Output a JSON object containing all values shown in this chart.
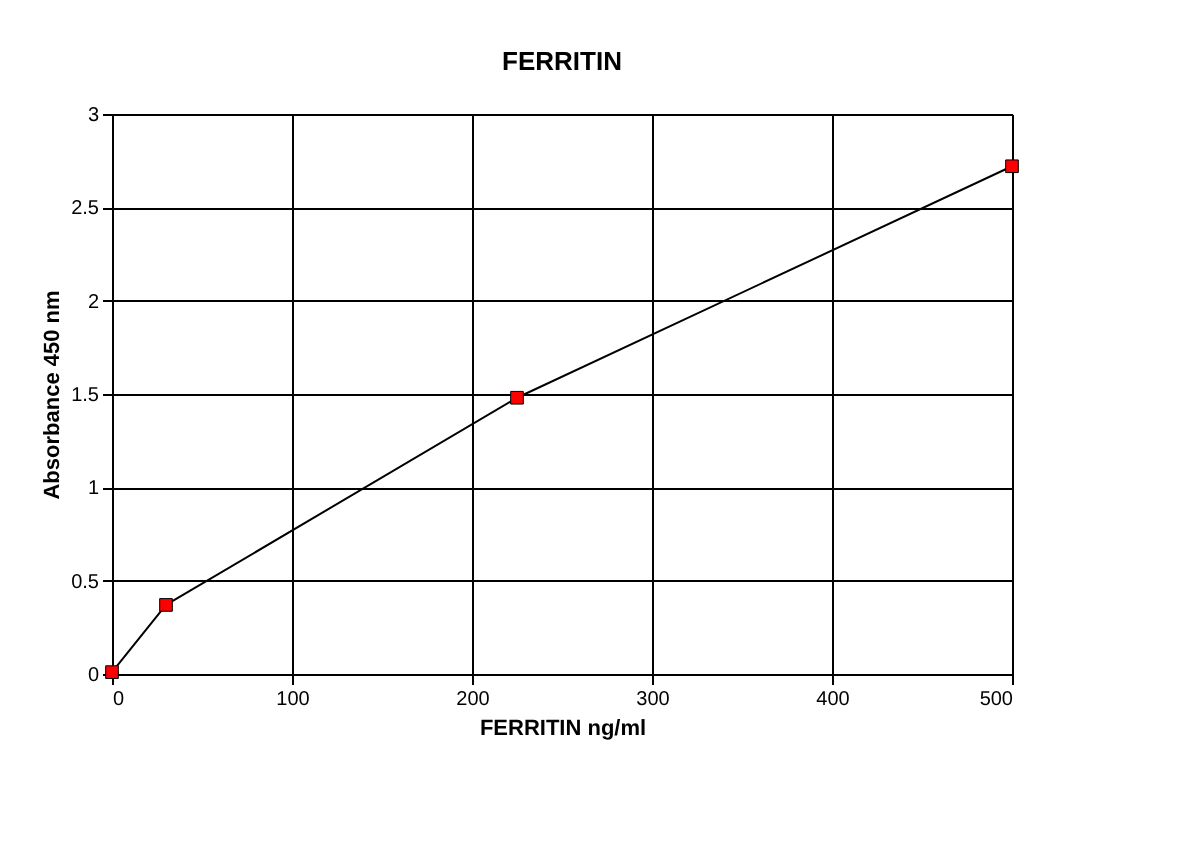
{
  "chart_data": {
    "type": "line",
    "title": "FERRITIN",
    "xlabel": "FERRITIN  ng/ml",
    "ylabel": "Absorbance 450 nm",
    "x": [
      0,
      30,
      225,
      500
    ],
    "series": [
      {
        "color": "#ff0000",
        "values": [
          0.01,
          0.37,
          1.48,
          2.72
        ]
      }
    ],
    "xlim": [
      0,
      500
    ],
    "xticks": [
      0,
      100,
      200,
      300,
      400,
      500
    ],
    "ylim": [
      0,
      3
    ],
    "yticks": [
      0,
      0.5,
      1,
      1.5,
      2,
      2.5,
      3
    ],
    "grid": true,
    "marker": "square",
    "line_style": "solid"
  }
}
